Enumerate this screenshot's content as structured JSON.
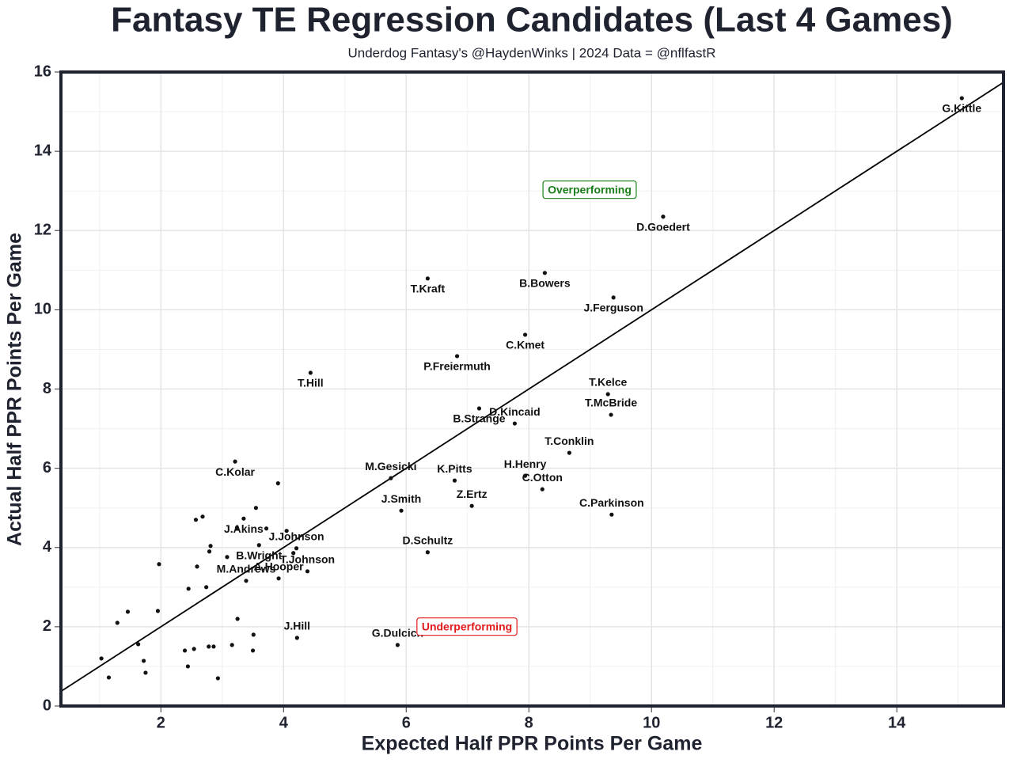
{
  "chart_data": {
    "type": "scatter",
    "title": "Fantasy TE Regression Candidates (Last 4 Games)",
    "subtitle": "Underdog Fantasy's @HaydenWinks | 2024 Data = @nflfastR",
    "x_label": "Expected Half PPR Points Per Game",
    "y_label": "Actual Half PPR Points Per Game",
    "xlim": [
      0.37,
      15.74
    ],
    "ylim": [
      0,
      16
    ],
    "xticks": [
      2,
      4,
      6,
      8,
      10,
      12,
      14
    ],
    "yticks": [
      0,
      2,
      4,
      6,
      8,
      10,
      12,
      14,
      16
    ],
    "grid": true,
    "color": "#111111",
    "line_color": "#000000",
    "annotations": [
      {
        "text": "Overperforming",
        "color": "#1a7f1a"
      },
      {
        "text": "Underperforming",
        "color": "#e31a1c"
      }
    ],
    "labels": [
      "G.Kittle",
      "D.Goedert",
      "B.Bowers",
      "T.Kraft",
      "J.Ferguson",
      "C.Kmet",
      "P.Freiermuth",
      "T.Hill",
      "B.Strange",
      "T.Kelce",
      "T.McBride",
      "D.Kincaid",
      "T.Conklin",
      "C.Kolar",
      "M.Gesicki",
      "H.Henry",
      "K.Pitts",
      "C.Otton",
      "Z.Ertz",
      "J.Smith",
      "C.Parkinson",
      "J.Akins",
      "D.Schultz",
      "J.Johnson",
      "B.Wright",
      "T.Johnson",
      "M.Andrews",
      "A.Hooper",
      "J.Hill",
      "G.Dulcich",
      null,
      null,
      null,
      null,
      null,
      null,
      null,
      null,
      null,
      null,
      null,
      null,
      null,
      null,
      null,
      null,
      null,
      null,
      null,
      null,
      null,
      null,
      null,
      null,
      null,
      null,
      null,
      null,
      null,
      null,
      null,
      null,
      null
    ],
    "x": [
      15.06,
      10.19,
      8.26,
      6.35,
      9.38,
      7.94,
      6.83,
      4.44,
      7.19,
      9.29,
      9.34,
      7.77,
      8.66,
      3.21,
      5.75,
      7.94,
      6.79,
      8.22,
      7.07,
      5.92,
      9.35,
      3.35,
      6.35,
      4.21,
      3.6,
      4.39,
      3.39,
      3.92,
      4.22,
      5.86,
      1.03,
      1.15,
      1.29,
      1.46,
      1.63,
      1.72,
      1.75,
      1.97,
      1.95,
      2.39,
      2.44,
      2.45,
      2.54,
      2.57,
      2.59,
      2.68,
      2.74,
      2.78,
      2.79,
      2.81,
      2.86,
      2.93,
      3.08,
      3.16,
      3.24,
      3.25,
      3.51,
      3.5,
      3.55,
      3.72,
      3.91,
      4.05,
      4.16
    ],
    "y": [
      15.34,
      12.35,
      10.93,
      10.79,
      10.31,
      9.37,
      8.83,
      8.41,
      7.51,
      7.87,
      7.35,
      7.13,
      6.39,
      6.17,
      5.75,
      5.81,
      5.69,
      5.47,
      5.05,
      4.93,
      4.83,
      4.73,
      3.88,
      3.98,
      4.06,
      3.4,
      3.16,
      3.22,
      1.72,
      1.54,
      1.2,
      0.72,
      2.1,
      2.38,
      1.56,
      1.14,
      0.84,
      3.58,
      2.4,
      1.4,
      1.0,
      2.96,
      1.44,
      4.7,
      3.52,
      4.78,
      3.0,
      1.5,
      3.9,
      4.04,
      1.5,
      0.7,
      3.76,
      1.54,
      4.5,
      2.2,
      1.8,
      1.4,
      5.0,
      4.48,
      5.62,
      4.42,
      3.86
    ]
  }
}
